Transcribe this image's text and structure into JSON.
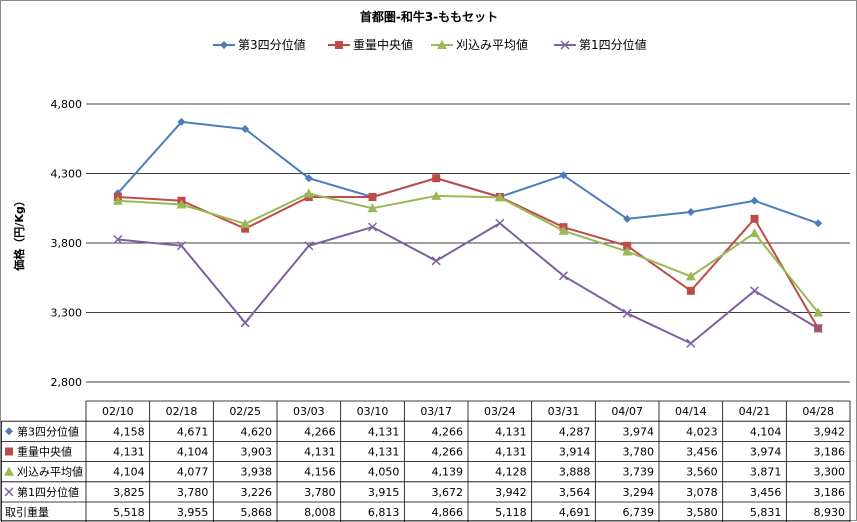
{
  "chart_data": {
    "type": "line",
    "title": "首都圏-和牛3-ももセット",
    "ylabel": "価格（円/Kg）",
    "ylim": [
      2800,
      4800
    ],
    "yticks": [
      "4,800",
      "4,300",
      "3,800",
      "3,300",
      "2,800"
    ],
    "ytick_values": [
      4800,
      4300,
      3800,
      3300,
      2800
    ],
    "grid": true,
    "legend_position": "top",
    "categories": [
      "02/10",
      "02/18",
      "02/25",
      "03/03",
      "03/10",
      "03/17",
      "03/24",
      "03/31",
      "04/07",
      "04/14",
      "04/21",
      "04/28"
    ],
    "series": [
      {
        "name": "第3四分位値",
        "color": "#4a7ebb",
        "marker": "diamond",
        "values": [
          4158,
          4671,
          4620,
          4266,
          4131,
          4266,
          4131,
          4287,
          3974,
          4023,
          4104,
          3942
        ],
        "labels": [
          "4,158",
          "4,671",
          "4,620",
          "4,266",
          "4,131",
          "4,266",
          "4,131",
          "4,287",
          "3,974",
          "4,023",
          "4,104",
          "3,942"
        ]
      },
      {
        "name": "重量中央値",
        "color": "#be4b48",
        "marker": "square",
        "values": [
          4131,
          4104,
          3903,
          4131,
          4131,
          4266,
          4131,
          3914,
          3780,
          3456,
          3974,
          3186
        ],
        "labels": [
          "4,131",
          "4,104",
          "3,903",
          "4,131",
          "4,131",
          "4,266",
          "4,131",
          "3,914",
          "3,780",
          "3,456",
          "3,974",
          "3,186"
        ]
      },
      {
        "name": "刈込み平均値",
        "color": "#98b954",
        "marker": "triangle",
        "values": [
          4104,
          4077,
          3938,
          4156,
          4050,
          4139,
          4128,
          3888,
          3739,
          3560,
          3871,
          3300
        ],
        "labels": [
          "4,104",
          "4,077",
          "3,938",
          "4,156",
          "4,050",
          "4,139",
          "4,128",
          "3,888",
          "3,739",
          "3,560",
          "3,871",
          "3,300"
        ]
      },
      {
        "name": "第1四分位値",
        "color": "#7d60a0",
        "marker": "x",
        "values": [
          3825,
          3780,
          3226,
          3780,
          3915,
          3672,
          3942,
          3564,
          3294,
          3078,
          3456,
          3186
        ],
        "labels": [
          "3,825",
          "3,780",
          "3,226",
          "3,780",
          "3,915",
          "3,672",
          "3,942",
          "3,564",
          "3,294",
          "3,078",
          "3,456",
          "3,186"
        ]
      }
    ],
    "extra_row": {
      "name": "取引重量",
      "labels": [
        "5,518",
        "3,955",
        "5,868",
        "8,008",
        "6,813",
        "4,866",
        "5,118",
        "4,691",
        "6,739",
        "3,580",
        "5,831",
        "8,930"
      ]
    }
  }
}
